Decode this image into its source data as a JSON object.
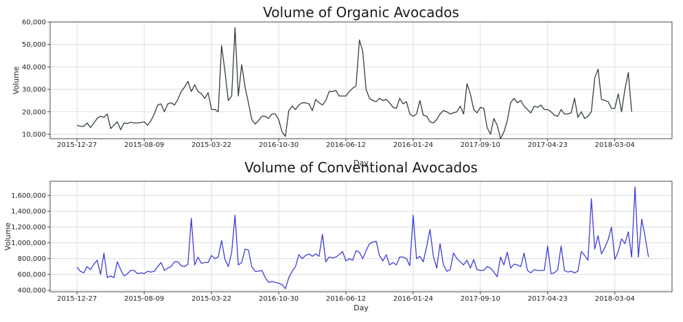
{
  "chart_data": [
    {
      "type": "line",
      "title": "Volume of Organic Avocados",
      "xlabel": "Day",
      "ylabel": "Volume",
      "ylim": [
        8000,
        60000
      ],
      "yticks": [
        10000,
        20000,
        30000,
        40000,
        50000,
        60000
      ],
      "ytick_labels": [
        "10,000",
        "20,000",
        "30,000",
        "40,000",
        "50,000",
        "60,000"
      ],
      "xticks": [
        0,
        20,
        40,
        60,
        80,
        100,
        120,
        140,
        160
      ],
      "xtick_labels": [
        "2015-12-27",
        "2015-08-09",
        "2015-03-22",
        "2016-10-30",
        "2016-06-12",
        "2016-01-24",
        "2017-09-10",
        "2017-04-23",
        "2018-03-04"
      ],
      "xlim": [
        -8,
        177
      ],
      "grid": true,
      "color": "#2f3f35",
      "series": [
        {
          "values": [
            14000,
            13500,
            13500,
            15000,
            13000,
            15000,
            17000,
            18000,
            17500,
            19000,
            12500,
            14000,
            15500,
            12000,
            15000,
            14800,
            15300,
            15000,
            15000,
            15200,
            15500,
            14000,
            16000,
            19000,
            23000,
            23500,
            20000,
            23500,
            24000,
            23000,
            25500,
            29000,
            31000,
            33500,
            29000,
            32000,
            29000,
            28000,
            26000,
            28500,
            21000,
            21000,
            20000,
            49500,
            38000,
            25000,
            27000,
            57500,
            27000,
            41000,
            31000,
            24000,
            16500,
            14500,
            16000,
            18000,
            18000,
            17000,
            19000,
            19000,
            16500,
            11000,
            9000,
            20500,
            22500,
            21000,
            23000,
            24000,
            24000,
            23500,
            20500,
            25500,
            24000,
            23000,
            25000,
            29000,
            29000,
            29500,
            27000,
            27000,
            27000,
            29000,
            30500,
            31500,
            52000,
            47000,
            30000,
            26000,
            25000,
            24500,
            26000,
            25000,
            25500,
            24000,
            22000,
            21500,
            26000,
            23500,
            24500,
            19000,
            18000,
            19000,
            25000,
            18500,
            18000,
            15500,
            15000,
            16500,
            19000,
            20500,
            20000,
            19000,
            19500,
            20000,
            22500,
            19000,
            32500,
            28000,
            21000,
            19500,
            22000,
            21500,
            13000,
            10000,
            17000,
            14000,
            8000,
            11000,
            16000,
            24000,
            26000,
            24000,
            25000,
            22500,
            21000,
            19500,
            22500,
            22000,
            23000,
            21000,
            21000,
            20000,
            18500,
            18000,
            21000,
            19000,
            19000,
            19500,
            26000,
            17500,
            20000,
            17000,
            18000,
            20000,
            35000,
            39000,
            25500,
            25000,
            24500,
            21500,
            21500,
            28000,
            20000,
            30000,
            37500,
            20000
          ]
        }
      ]
    },
    {
      "type": "line",
      "title": "Volume of Conventional Avocados",
      "xlabel": "Day",
      "ylabel": "Volume",
      "ylim": [
        380000,
        1780000
      ],
      "yticks": [
        400000,
        600000,
        800000,
        1000000,
        1200000,
        1400000,
        1600000
      ],
      "ytick_labels": [
        "400,000",
        "600,000",
        "800,000",
        "1,000,000",
        "1,200,000",
        "1,400,000",
        "1,600,000"
      ],
      "xticks": [
        0,
        20,
        40,
        60,
        80,
        100,
        120,
        140,
        160
      ],
      "xtick_labels": [
        "2015-12-27",
        "2015-08-09",
        "2015-03-22",
        "2016-10-30",
        "2016-06-12",
        "2016-01-24",
        "2017-09-10",
        "2017-04-23",
        "2018-03-04"
      ],
      "xlim": [
        -8,
        177
      ],
      "grid": true,
      "color": "#3b3bd6",
      "series": [
        {
          "values": [
            690000,
            640000,
            620000,
            700000,
            660000,
            730000,
            780000,
            600000,
            870000,
            560000,
            580000,
            560000,
            760000,
            660000,
            580000,
            610000,
            650000,
            650000,
            610000,
            620000,
            610000,
            640000,
            630000,
            640000,
            700000,
            750000,
            650000,
            680000,
            700000,
            760000,
            760000,
            710000,
            700000,
            730000,
            1310000,
            720000,
            820000,
            740000,
            750000,
            750000,
            840000,
            800000,
            820000,
            1030000,
            790000,
            700000,
            880000,
            1350000,
            720000,
            750000,
            920000,
            910000,
            700000,
            640000,
            640000,
            650000,
            560000,
            500000,
            510000,
            500000,
            490000,
            470000,
            420000,
            560000,
            640000,
            700000,
            850000,
            800000,
            840000,
            860000,
            830000,
            860000,
            830000,
            1110000,
            760000,
            820000,
            810000,
            820000,
            850000,
            890000,
            770000,
            800000,
            780000,
            900000,
            880000,
            800000,
            900000,
            990000,
            1010000,
            1020000,
            840000,
            770000,
            850000,
            720000,
            750000,
            720000,
            820000,
            820000,
            800000,
            710000,
            1350000,
            800000,
            830000,
            760000,
            950000,
            1170000,
            830000,
            680000,
            990000,
            720000,
            640000,
            660000,
            870000,
            800000,
            760000,
            720000,
            780000,
            680000,
            790000,
            660000,
            650000,
            650000,
            700000,
            680000,
            630000,
            570000,
            820000,
            720000,
            880000,
            680000,
            730000,
            720000,
            700000,
            870000,
            650000,
            620000,
            660000,
            650000,
            650000,
            650000,
            960000,
            610000,
            620000,
            660000,
            960000,
            650000,
            630000,
            640000,
            620000,
            640000,
            890000,
            840000,
            780000,
            1560000,
            920000,
            1090000,
            860000,
            940000,
            1040000,
            1200000,
            790000,
            890000,
            1050000,
            990000,
            1140000,
            820000,
            1710000,
            820000,
            1300000,
            1080000,
            820000
          ]
        }
      ]
    }
  ]
}
